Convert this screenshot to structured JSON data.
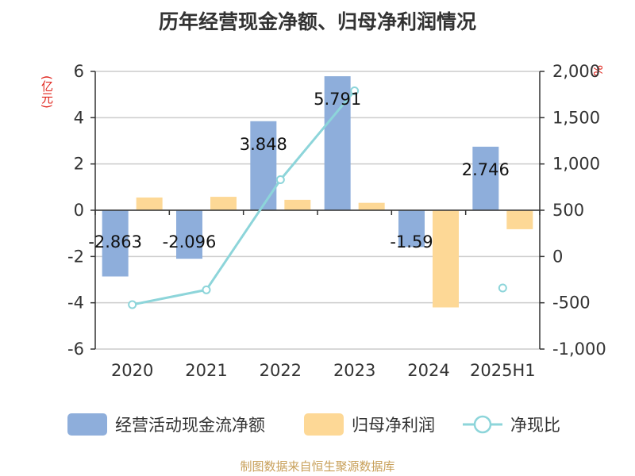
{
  "chart_data": {
    "type": "bar",
    "title": "历年经营现金净额、归母净利润情况",
    "ylabel": "(亿元)",
    "y2label": "%",
    "categories": [
      "2020",
      "2021",
      "2022",
      "2023",
      "2024",
      "2025H1"
    ],
    "ylim": [
      -6,
      6
    ],
    "yticks": [
      "6",
      "4",
      "2",
      "0",
      "-2",
      "-4",
      "-6"
    ],
    "y2lim": [
      -1000,
      2000
    ],
    "y2ticks": [
      "2,000",
      "1,500",
      "1,000",
      "500",
      "0",
      "-500",
      "-1,000"
    ],
    "series": [
      {
        "name": "经营活动现金流净额",
        "type": "bar",
        "axis": "left",
        "color": "#8eaedb",
        "values": [
          -2.863,
          -2.096,
          3.848,
          5.791,
          -1.59,
          2.746
        ],
        "labels": [
          "-2.863",
          "-2.096",
          "3.848",
          "5.791",
          "-1.59",
          "2.746"
        ]
      },
      {
        "name": "归母净利润",
        "type": "bar",
        "axis": "left",
        "color": "#fdd896",
        "values": [
          0.55,
          0.58,
          0.45,
          0.32,
          -4.2,
          -0.82
        ]
      },
      {
        "name": "净现比",
        "type": "line",
        "axis": "right",
        "color": "#8dd5da",
        "values": [
          -520,
          -360,
          830,
          1790,
          null,
          -340
        ]
      }
    ],
    "grid": true,
    "legend": "bottom"
  },
  "source": "制图数据来自恒生聚源数据库"
}
